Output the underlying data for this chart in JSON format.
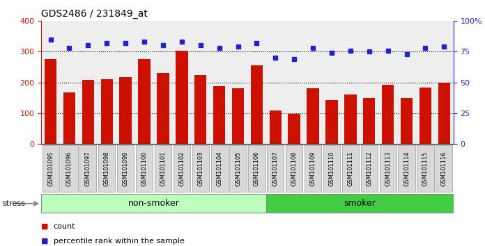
{
  "title": "GDS2486 / 231849_at",
  "samples": [
    "GSM101095",
    "GSM101096",
    "GSM101097",
    "GSM101098",
    "GSM101099",
    "GSM101100",
    "GSM101101",
    "GSM101102",
    "GSM101103",
    "GSM101104",
    "GSM101105",
    "GSM101106",
    "GSM101107",
    "GSM101108",
    "GSM101109",
    "GSM101110",
    "GSM101111",
    "GSM101112",
    "GSM101113",
    "GSM101114",
    "GSM101115",
    "GSM101116"
  ],
  "counts": [
    275,
    168,
    208,
    210,
    218,
    275,
    230,
    302,
    225,
    187,
    180,
    256,
    108,
    97,
    182,
    142,
    161,
    150,
    192,
    150,
    184,
    200
  ],
  "percentile_ranks": [
    85,
    78,
    80,
    82,
    82,
    83,
    80,
    83,
    80,
    78,
    79,
    82,
    70,
    69,
    78,
    74,
    76,
    75,
    76,
    73,
    78,
    79
  ],
  "non_smoker_count": 12,
  "smoker_count": 10,
  "bar_color": "#cc1100",
  "dot_color": "#2222cc",
  "left_axis_color": "#cc1100",
  "right_axis_color": "#2222cc",
  "ylim_left": [
    0,
    400
  ],
  "ylim_right": [
    0,
    100
  ],
  "yticks_left": [
    0,
    100,
    200,
    300,
    400
  ],
  "yticks_right": [
    0,
    25,
    50,
    75,
    100
  ],
  "ytick_labels_right": [
    "0",
    "25",
    "50",
    "75",
    "100%"
  ],
  "grid_values": [
    100,
    200,
    300
  ],
  "non_smoker_color": "#bbffbb",
  "smoker_color": "#44cc44",
  "xlabel_bg_color": "#d8d8d8",
  "plot_bg_color": "#eeeeee",
  "stress_label": "stress",
  "non_smoker_label": "non-smoker",
  "smoker_label": "smoker",
  "legend_count_label": "count",
  "legend_pct_label": "percentile rank within the sample",
  "title_fontsize": 10,
  "bar_width": 0.65
}
